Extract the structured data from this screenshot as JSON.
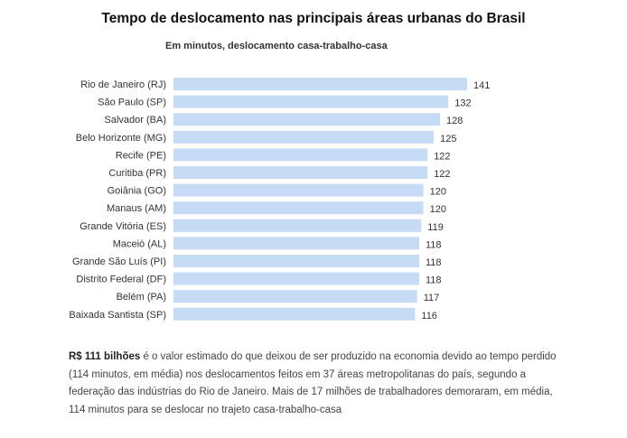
{
  "chart_data": {
    "type": "bar",
    "orientation": "horizontal",
    "title": "Tempo de deslocamento nas principais áreas urbanas do Brasil",
    "subtitle": "Em minutos, deslocamento casa-trabalho-casa",
    "xlabel": "",
    "ylabel": "",
    "xlim": [
      0,
      141
    ],
    "grid": false,
    "bar_color": "#c6dcf5",
    "categories": [
      "Rio de Janeiro (RJ)",
      "São Paulo (SP)",
      "Salvador (BA)",
      "Belo Horizonte (MG)",
      "Recife (PE)",
      "Curitiba (PR)",
      "Goiânia (GO)",
      "Manaus (AM)",
      "Grande Vitória (ES)",
      "Maceió (AL)",
      "Grande São Luís (PI)",
      "Distrito Federal (DF)",
      "Belém (PA)",
      "Baixada Santista (SP)"
    ],
    "values": [
      141,
      132,
      128,
      125,
      122,
      122,
      120,
      120,
      119,
      118,
      118,
      118,
      117,
      116
    ]
  },
  "note": {
    "highlight": "R$ 111 bilhões",
    "text": " é o valor estimado do que deixou de ser produzido na economia devido ao tempo perdido (114 minutos, em média) nos deslocamentos feitos em 37 áreas metropolitanas do país, segundo a federação das indústrias do Rio de Janeiro. Mais de 17 milhões de trabalhadores demoraram, em média, 114 minutos para se deslocar no trajeto casa-trabalho-casa"
  }
}
